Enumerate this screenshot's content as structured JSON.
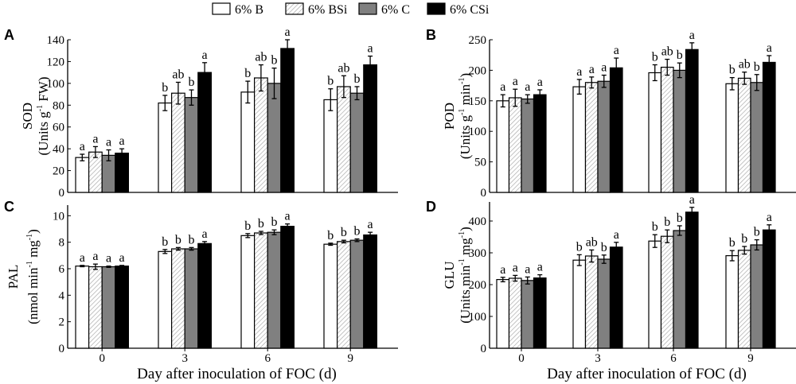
{
  "legend": [
    {
      "label": "6% B",
      "fill": "#ffffff",
      "pattern": "none"
    },
    {
      "label": "6% BSi",
      "fill": "#ffffff",
      "pattern": "hatch"
    },
    {
      "label": "6% C",
      "fill": "#808080",
      "pattern": "none"
    },
    {
      "label": "6% CSi",
      "fill": "#000000",
      "pattern": "none"
    }
  ],
  "chart_data": [
    {
      "type": "bar",
      "panel": "A",
      "ylabel": [
        "SOD",
        [
          {
            "t": "(Units g"
          },
          {
            "sup": "-1"
          },
          {
            "t": " FW)"
          }
        ]
      ],
      "xlabel": "",
      "show_xticks": false,
      "categories": [
        "0",
        "3",
        "6",
        "9"
      ],
      "ylim": [
        0,
        140
      ],
      "yticks": [
        0,
        20,
        40,
        60,
        80,
        100,
        120,
        140
      ],
      "series": [
        {
          "name": "6% B",
          "values": [
            32,
            82,
            92,
            85
          ],
          "errors": [
            3,
            7,
            10,
            10
          ],
          "letters": [
            "a",
            "b",
            "b",
            "b"
          ]
        },
        {
          "name": "6% BSi",
          "values": [
            37,
            91,
            105,
            97
          ],
          "errors": [
            5,
            10,
            12,
            10
          ],
          "letters": [
            "a",
            "ab",
            "ab",
            "ab"
          ]
        },
        {
          "name": "6% C",
          "values": [
            34,
            87,
            100,
            91
          ],
          "errors": [
            5,
            7,
            14,
            6
          ],
          "letters": [
            "a",
            "b",
            "b",
            "b"
          ]
        },
        {
          "name": "6% CSi",
          "values": [
            36,
            110,
            132,
            117
          ],
          "errors": [
            4,
            9,
            8,
            8
          ],
          "letters": [
            "a",
            "a",
            "a",
            "a"
          ]
        }
      ]
    },
    {
      "type": "bar",
      "panel": "B",
      "ylabel": [
        "POD",
        [
          {
            "t": "(Units g"
          },
          {
            "sup": "-1"
          },
          {
            "t": " min"
          },
          {
            "sup": "-1"
          },
          {
            "t": ")"
          }
        ]
      ],
      "xlabel": "",
      "show_xticks": false,
      "categories": [
        "0",
        "3",
        "6",
        "9"
      ],
      "ylim": [
        0,
        250
      ],
      "yticks": [
        0,
        50,
        100,
        150,
        200,
        250
      ],
      "series": [
        {
          "name": "6% B",
          "values": [
            150,
            173,
            196,
            178
          ],
          "errors": [
            10,
            12,
            13,
            10
          ],
          "letters": [
            "a",
            "a",
            "b",
            "b"
          ]
        },
        {
          "name": "6% BSi",
          "values": [
            155,
            180,
            205,
            187
          ],
          "errors": [
            14,
            9,
            13,
            10
          ],
          "letters": [
            "a",
            "a",
            "ab",
            "ab"
          ]
        },
        {
          "name": "6% C",
          "values": [
            153,
            182,
            200,
            180
          ],
          "errors": [
            7,
            10,
            12,
            13
          ],
          "letters": [
            "a",
            "a",
            "b",
            "b"
          ]
        },
        {
          "name": "6% CSi",
          "values": [
            160,
            204,
            234,
            213
          ],
          "errors": [
            8,
            16,
            11,
            11
          ],
          "letters": [
            "a",
            "a",
            "a",
            "a"
          ]
        }
      ]
    },
    {
      "type": "bar",
      "panel": "C",
      "ylabel": [
        "PAL",
        [
          {
            "t": "(nmol min"
          },
          {
            "sup": "-1"
          },
          {
            "t": " mg"
          },
          {
            "sup": "-1"
          },
          {
            "t": ")"
          }
        ]
      ],
      "xlabel": "Day after inoculation of FOC (d)",
      "show_xticks": true,
      "categories": [
        "0",
        "3",
        "6",
        "9"
      ],
      "ylim": [
        0,
        10.8
      ],
      "yticks": [
        0,
        2,
        4,
        6,
        8,
        10
      ],
      "series": [
        {
          "name": "6% B",
          "values": [
            6.2,
            7.3,
            8.5,
            7.85
          ],
          "errors": [
            0.05,
            0.15,
            0.15,
            0.08
          ],
          "letters": [
            "a",
            "b",
            "b",
            "b"
          ]
        },
        {
          "name": "6% BSi",
          "values": [
            6.15,
            7.5,
            8.7,
            8.05
          ],
          "errors": [
            0.2,
            0.1,
            0.12,
            0.1
          ],
          "letters": [
            "a",
            "b",
            "b",
            "b"
          ]
        },
        {
          "name": "6% C",
          "values": [
            6.15,
            7.5,
            8.75,
            8.15
          ],
          "errors": [
            0.05,
            0.1,
            0.18,
            0.1
          ],
          "letters": [
            "a",
            "b",
            "b",
            "b"
          ]
        },
        {
          "name": "6% CSi",
          "values": [
            6.2,
            7.9,
            9.2,
            8.55
          ],
          "errors": [
            0.05,
            0.15,
            0.18,
            0.2
          ],
          "letters": [
            "a",
            "a",
            "a",
            "a"
          ]
        }
      ]
    },
    {
      "type": "bar",
      "panel": "D",
      "ylabel": [
        "GLU",
        [
          {
            "t": "(Units min"
          },
          {
            "sup": "-1"
          },
          {
            "t": " mg"
          },
          {
            "sup": "-1"
          },
          {
            "t": ")"
          }
        ]
      ],
      "xlabel": "Day after inoculation of FOC (d)",
      "show_xticks": true,
      "categories": [
        "0",
        "3",
        "6",
        "9"
      ],
      "ylim": [
        0,
        460
      ],
      "yticks": [
        0,
        100,
        200,
        300,
        400
      ],
      "series": [
        {
          "name": "6% B",
          "values": [
            216,
            277,
            337,
            291
          ],
          "errors": [
            7,
            17,
            20,
            16
          ],
          "letters": [
            "a",
            "b",
            "b",
            "b"
          ]
        },
        {
          "name": "6% BSi",
          "values": [
            220,
            290,
            352,
            308
          ],
          "errors": [
            9,
            19,
            20,
            12
          ],
          "letters": [
            "a",
            "ab",
            "b",
            "b"
          ]
        },
        {
          "name": "6% C",
          "values": [
            213,
            280,
            370,
            325
          ],
          "errors": [
            11,
            13,
            15,
            16
          ],
          "letters": [
            "a",
            "b",
            "b",
            "b"
          ]
        },
        {
          "name": "6% CSi",
          "values": [
            221,
            318,
            428,
            372
          ],
          "errors": [
            10,
            15,
            15,
            16
          ],
          "letters": [
            "a",
            "a",
            "a",
            "a"
          ]
        }
      ]
    }
  ]
}
